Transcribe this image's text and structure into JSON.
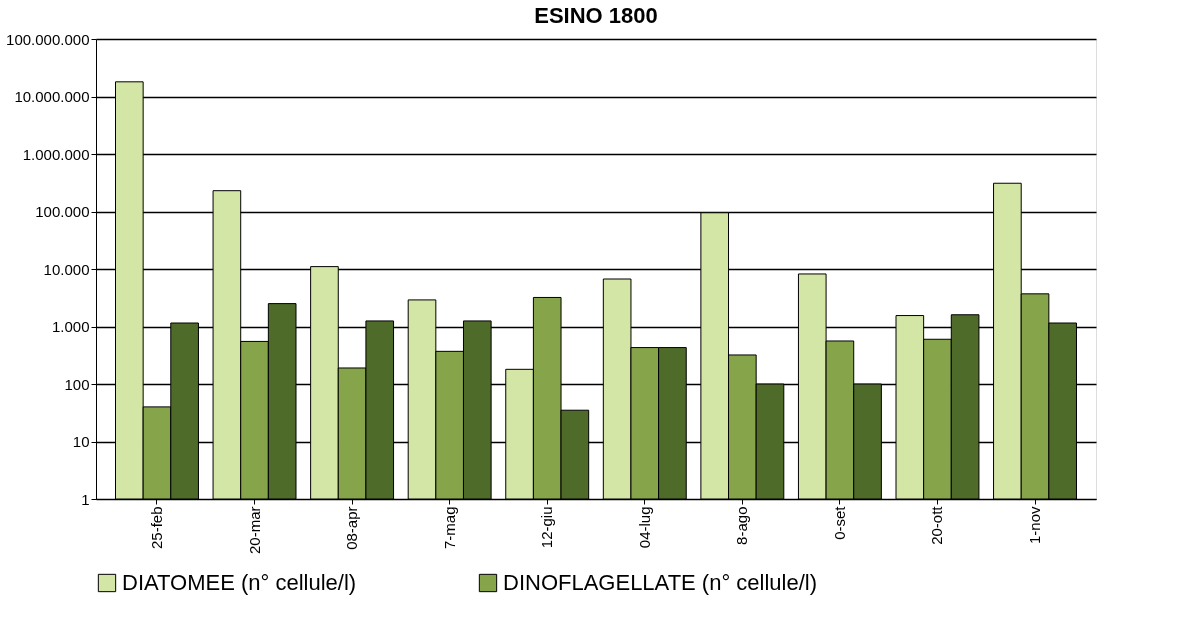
{
  "chart_data": {
    "type": "bar",
    "title": "ESINO 1800",
    "categories": [
      "25-feb",
      "20-mar",
      "08-apr",
      "7-mag",
      "12-giu",
      "04-lug",
      "8-ago",
      "0-set",
      "20-ott",
      "1-nov"
    ],
    "series": [
      {
        "name": "DIATOMEE (n° cellule/l)",
        "color": "#d4e6a5",
        "values": [
          18000000,
          230000,
          11000,
          2900,
          180,
          6700,
          95000,
          8200,
          1550,
          310000
        ]
      },
      {
        "name": "DINOFLAGELLATE (n° cellule/l)",
        "color": "#86a44a",
        "values": [
          40,
          550,
          190,
          370,
          3200,
          430,
          320,
          560,
          600,
          3700
        ]
      },
      {
        "color": "#4f6b2a",
        "values": [
          1150,
          2500,
          1250,
          1250,
          35,
          430,
          100,
          100,
          1600,
          1150
        ]
      }
    ],
    "log": "y",
    "ylim": [
      1,
      100000000
    ],
    "yticks": [
      {
        "value": 1,
        "label": "1"
      },
      {
        "value": 10,
        "label": "10"
      },
      {
        "value": 100,
        "label": "100"
      },
      {
        "value": 1000,
        "label": "1.000"
      },
      {
        "value": 10000,
        "label": "10.000"
      },
      {
        "value": 100000,
        "label": "100.000"
      },
      {
        "value": 1000000,
        "label": "1.000.000"
      },
      {
        "value": 10000000,
        "label": "10.000.000"
      },
      {
        "value": 100000000,
        "label": "100.000.000"
      }
    ],
    "grid": "y",
    "legend": "bottom"
  }
}
